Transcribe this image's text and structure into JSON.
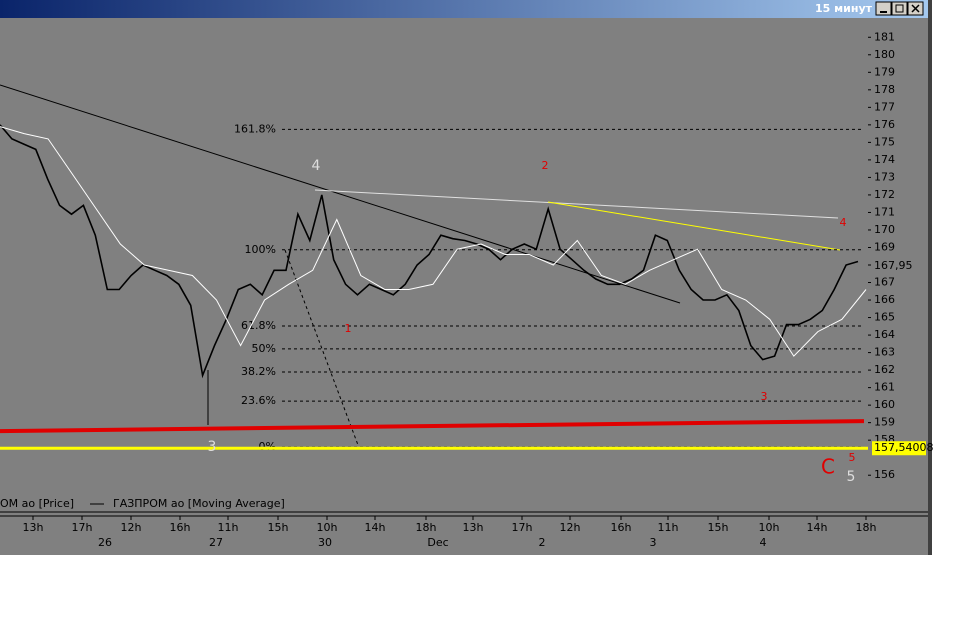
{
  "window": {
    "title": "15 минут"
  },
  "chart_data": {
    "type": "line",
    "series": [
      {
        "name": "ОМ ао [Price]",
        "color": "#000000",
        "values": [
          176.0,
          175.2,
          174.9,
          174.6,
          172.9,
          171.4,
          170.9,
          171.4,
          169.7,
          166.6,
          166.6,
          167.4,
          168.0,
          167.7,
          167.4,
          166.9,
          165.7,
          161.7,
          163.4,
          164.9,
          166.6,
          166.9,
          166.3,
          167.7,
          167.7,
          170.9,
          169.4,
          172.0,
          168.3,
          166.9,
          166.3,
          166.9,
          166.6,
          166.3,
          166.9,
          168.0,
          168.6,
          169.7,
          169.5,
          169.4,
          169.2,
          168.9,
          168.3,
          168.9,
          169.2,
          168.9,
          171.2,
          168.9,
          168.3,
          167.7,
          167.2,
          166.9,
          166.9,
          167.2,
          167.7,
          169.7,
          169.4,
          167.7,
          166.6,
          166.0,
          166.0,
          166.3,
          165.4,
          163.4,
          162.6,
          162.8,
          164.6,
          164.6,
          164.9,
          165.4,
          166.6,
          168.0,
          168.2
        ]
      },
      {
        "name": "ГАЗПРОМ ао [Moving Average]",
        "color": "#ffffff",
        "values": [
          175.9,
          175.5,
          175.2,
          173.2,
          171.2,
          169.2,
          168.0,
          167.7,
          167.4,
          166.0,
          163.4,
          166.0,
          166.9,
          167.7,
          170.6,
          167.4,
          166.6,
          166.6,
          166.9,
          168.9,
          169.2,
          168.6,
          168.6,
          168.0,
          169.4,
          167.4,
          166.9,
          167.7,
          168.3,
          168.9,
          166.6,
          166.0,
          164.9,
          162.8,
          164.2,
          164.9,
          166.6
        ]
      }
    ],
    "ylim": [
      153.9,
      182.1
    ],
    "yticks": [
      156,
      158,
      159,
      160,
      161,
      162,
      163,
      164,
      165,
      166,
      167,
      168,
      169,
      170,
      171,
      172,
      173,
      174,
      175,
      176,
      177,
      178,
      179,
      180,
      181
    ],
    "x_time_labels": [
      "13h",
      "17h",
      "12h",
      "16h",
      "11h",
      "15h",
      "10h",
      "14h",
      "18h",
      "13h",
      "17h",
      "12h",
      "16h",
      "11h",
      "15h",
      "10h",
      "14h",
      "18h"
    ],
    "x_date_labels": [
      "26",
      "27",
      "30",
      "Dec",
      "2",
      "3",
      "4"
    ],
    "fib_levels": [
      {
        "label": "161.8%",
        "value": 175.74
      },
      {
        "label": "100%",
        "value": 168.87
      },
      {
        "label": "61.8%",
        "value": 164.52
      },
      {
        "label": "50%",
        "value": 163.21
      },
      {
        "label": "38.2%",
        "value": 161.89
      },
      {
        "label": "23.6%",
        "value": 160.23
      },
      {
        "label": "0%",
        "value": 157.6
      }
    ],
    "support_line": {
      "color": "#e00000",
      "values": [
        158.52,
        159.09
      ]
    },
    "yellow_level": {
      "value": 157.54008,
      "label": "157,54008",
      "color": "#ffff00"
    },
    "last_price": {
      "value": 167.95,
      "label": "167,95"
    },
    "wave_labels": [
      "3",
      "4",
      "1",
      "2",
      "3",
      "4",
      "5",
      "C",
      "5"
    ]
  }
}
